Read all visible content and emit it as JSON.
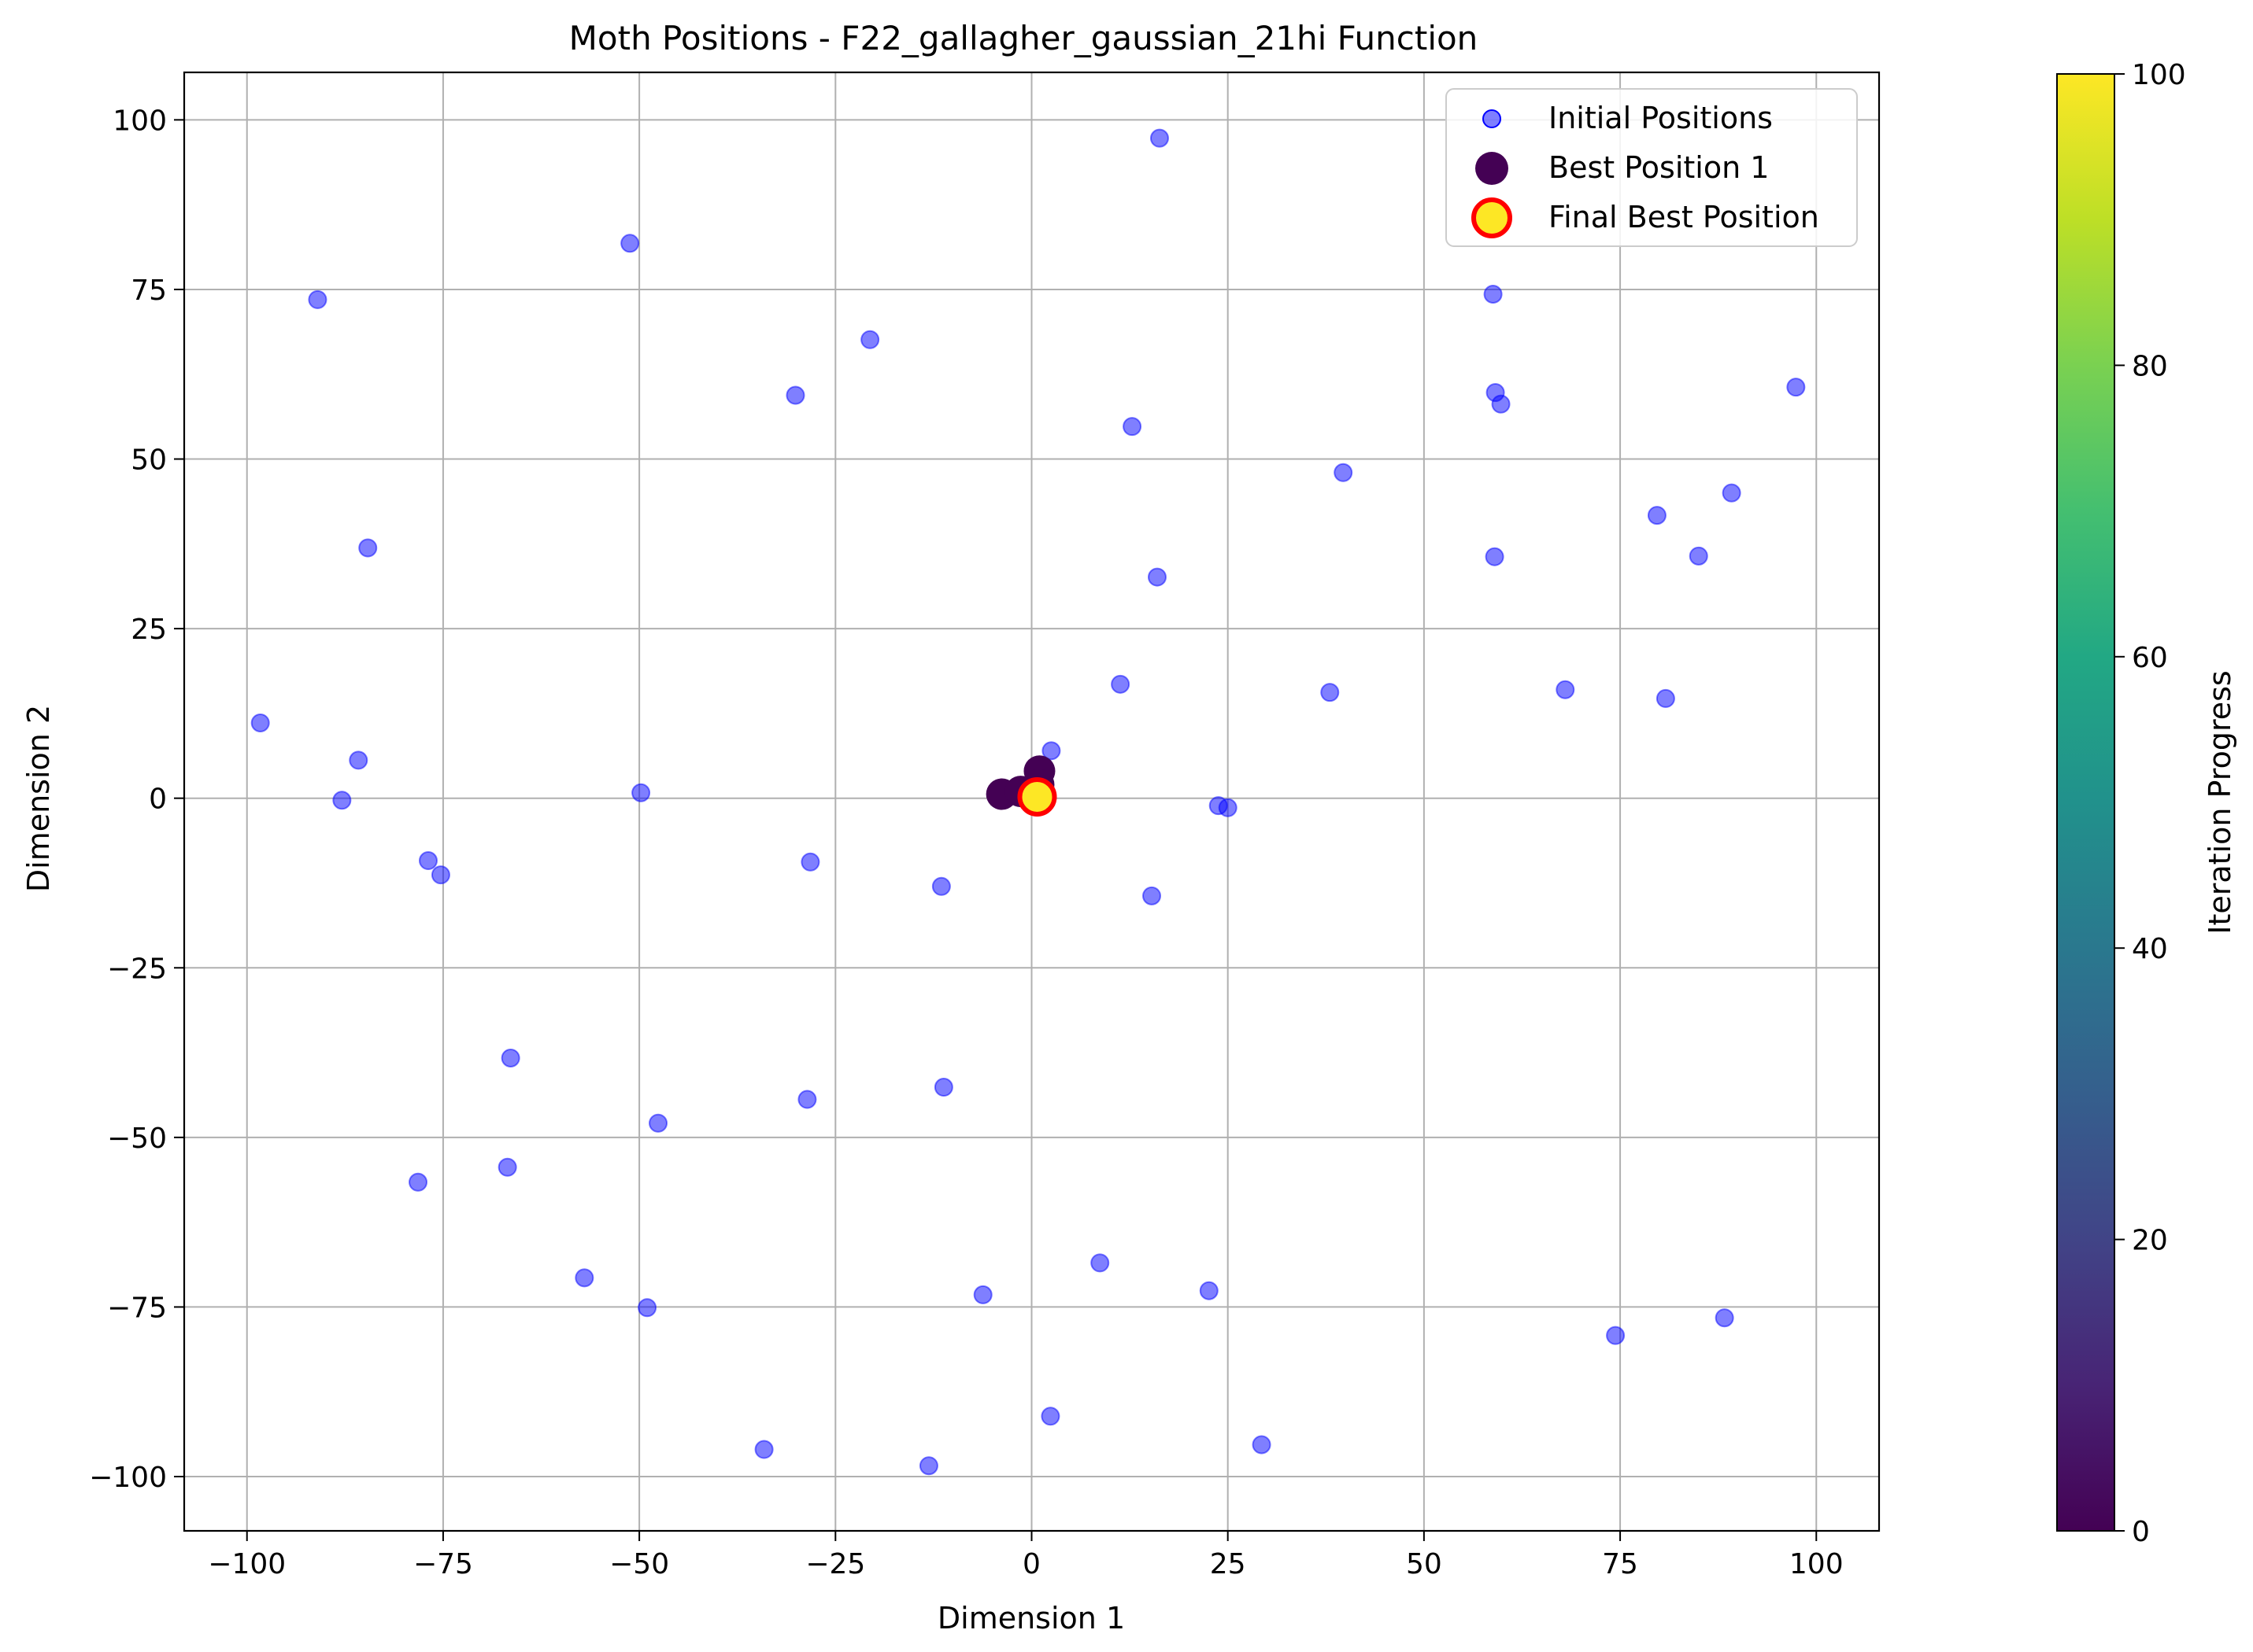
{
  "chart_data": {
    "type": "scatter",
    "title": "Moth Positions - F22_gallagher_gaussian_21hi Function",
    "xlabel": "Dimension 1",
    "ylabel": "Dimension 2",
    "xlim": [
      -108,
      108
    ],
    "ylim": [
      -108,
      107
    ],
    "xticks": [
      -100,
      -75,
      -50,
      -25,
      0,
      25,
      50,
      75,
      100
    ],
    "yticks": [
      -100,
      -75,
      -50,
      -25,
      0,
      25,
      50,
      75,
      100
    ],
    "grid": true,
    "legend_position": "top-right",
    "colorbar": {
      "label": "Iteration Progress",
      "range": [
        0,
        100
      ],
      "ticks": [
        0,
        20,
        40,
        60,
        80,
        100
      ],
      "colormap": "viridis"
    },
    "series": [
      {
        "name": "Initial Positions",
        "color": "#0000ff",
        "alpha": 0.5,
        "points": [
          [
            16.3,
            97.3
          ],
          [
            -51.2,
            81.8
          ],
          [
            -91.0,
            73.5
          ],
          [
            58.8,
            74.3
          ],
          [
            -20.6,
            67.6
          ],
          [
            -30.1,
            59.4
          ],
          [
            59.1,
            59.8
          ],
          [
            59.8,
            58.1
          ],
          [
            97.4,
            60.6
          ],
          [
            12.8,
            54.8
          ],
          [
            39.7,
            48.0
          ],
          [
            89.2,
            45.0
          ],
          [
            79.7,
            41.7
          ],
          [
            -84.6,
            36.9
          ],
          [
            59.0,
            35.6
          ],
          [
            85.0,
            35.7
          ],
          [
            16.0,
            32.6
          ],
          [
            11.3,
            16.8
          ],
          [
            38.0,
            15.6
          ],
          [
            68.0,
            16.0
          ],
          [
            80.8,
            14.7
          ],
          [
            -98.3,
            11.1
          ],
          [
            -85.8,
            5.6
          ],
          [
            2.5,
            7.0
          ],
          [
            -49.8,
            0.8
          ],
          [
            -87.9,
            -0.3
          ],
          [
            23.8,
            -1.1
          ],
          [
            25.0,
            -1.4
          ],
          [
            -76.9,
            -9.2
          ],
          [
            -75.3,
            -11.3
          ],
          [
            -28.2,
            -9.4
          ],
          [
            -11.5,
            -13.0
          ],
          [
            15.3,
            -14.4
          ],
          [
            -66.4,
            -38.3
          ],
          [
            -11.2,
            -42.6
          ],
          [
            -28.6,
            -44.4
          ],
          [
            -47.6,
            -47.9
          ],
          [
            -78.2,
            -56.6
          ],
          [
            -66.8,
            -54.4
          ],
          [
            -57.0,
            -70.7
          ],
          [
            8.7,
            -68.5
          ],
          [
            -49.0,
            -75.1
          ],
          [
            -6.2,
            -73.2
          ],
          [
            22.6,
            -72.6
          ],
          [
            88.3,
            -76.6
          ],
          [
            74.4,
            -79.2
          ],
          [
            2.4,
            -91.1
          ],
          [
            29.3,
            -95.3
          ],
          [
            -34.1,
            -96.0
          ],
          [
            -13.1,
            -98.4
          ]
        ]
      },
      {
        "name": "Best Position 1",
        "color": "#440154",
        "points": [
          [
            -3.8,
            0.6
          ],
          [
            -1.4,
            1.0
          ],
          [
            0.5,
            1.3
          ],
          [
            1.0,
            4.0
          ],
          [
            0.9,
            2.0
          ],
          [
            0.3,
            0.4
          ],
          [
            0.9,
            -0.3
          ],
          [
            0.6,
            0.7
          ]
        ]
      },
      {
        "name": "Final Best Position",
        "fill": "#fde725",
        "stroke": "#ff0000",
        "points": [
          [
            0.7,
            0.2
          ]
        ]
      }
    ]
  }
}
